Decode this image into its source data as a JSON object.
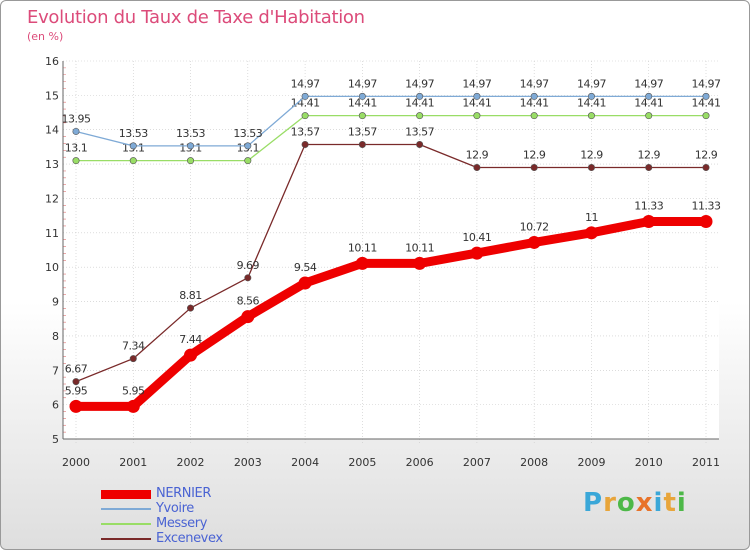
{
  "chart_data": {
    "type": "line",
    "title": "Evolution du Taux de Taxe d'Habitation",
    "subtitle": "(en %)",
    "x": [
      "2000",
      "2001",
      "2002",
      "2003",
      "2004",
      "2005",
      "2006",
      "2007",
      "2008",
      "2009",
      "2010",
      "2011"
    ],
    "ylim": [
      5,
      16
    ],
    "yticks": [
      "5",
      "6",
      "7",
      "8",
      "9",
      "10",
      "11",
      "12",
      "13",
      "14",
      "15",
      "16"
    ],
    "series": [
      {
        "name": "Excenevex",
        "color": "#7a2a2a",
        "values": [
          6.67,
          7.34,
          8.81,
          9.69,
          13.57,
          13.57,
          13.57,
          12.9,
          12.9,
          12.9,
          12.9,
          12.9
        ],
        "labels": [
          "6.67",
          "7.34",
          "8.81",
          "9.69",
          "13.57",
          "13.57",
          "13.57",
          "12.9",
          "12.9",
          "12.9",
          "12.9",
          "12.9"
        ]
      },
      {
        "name": "Messery",
        "color": "#99dd66",
        "values": [
          13.1,
          13.1,
          13.1,
          13.1,
          14.41,
          14.41,
          14.41,
          14.41,
          14.41,
          14.41,
          14.41,
          14.41
        ],
        "labels": [
          "13.1",
          "13.1",
          "13.1",
          "13.1",
          "14.41",
          "14.41",
          "14.41",
          "14.41",
          "14.41",
          "14.41",
          "14.41",
          "14.41"
        ]
      },
      {
        "name": "Yvoire",
        "color": "#7faad6",
        "values": [
          13.95,
          13.53,
          13.53,
          13.53,
          14.97,
          14.97,
          14.97,
          14.97,
          14.97,
          14.97,
          14.97,
          14.97
        ],
        "labels": [
          "13.95",
          "13.53",
          "13.53",
          "13.53",
          "14.97",
          "14.97",
          "14.97",
          "14.97",
          "14.97",
          "14.97",
          "14.97",
          "14.97"
        ]
      },
      {
        "name": "NERNIER",
        "color": "#ee0000",
        "values": [
          5.95,
          5.95,
          7.44,
          8.56,
          9.54,
          10.11,
          10.11,
          10.41,
          10.72,
          11,
          11.33,
          11.33
        ],
        "labels": [
          "5.95",
          "5.95",
          "7.44",
          "8.56",
          "9.54",
          "10.11",
          "10.11",
          "10.41",
          "10.72",
          "11",
          "11.33",
          "11.33"
        ]
      }
    ],
    "legend": [
      {
        "name": "NERNIER",
        "color": "#ee0000"
      },
      {
        "name": "Yvoire",
        "color": "#7faad6"
      },
      {
        "name": "Messery",
        "color": "#99dd66"
      },
      {
        "name": "Excenevex",
        "color": "#7a2a2a"
      }
    ],
    "grid": true,
    "legend_position": "bottom-left"
  },
  "branding": {
    "logo_letters": [
      "P",
      "r",
      "o",
      "x",
      "i",
      "t",
      "i"
    ],
    "logo_colors": [
      "#3aa7d8",
      "#e8a53a",
      "#4db848",
      "#e8732a",
      "#3aa7d8",
      "#e8a53a",
      "#4db848"
    ]
  }
}
